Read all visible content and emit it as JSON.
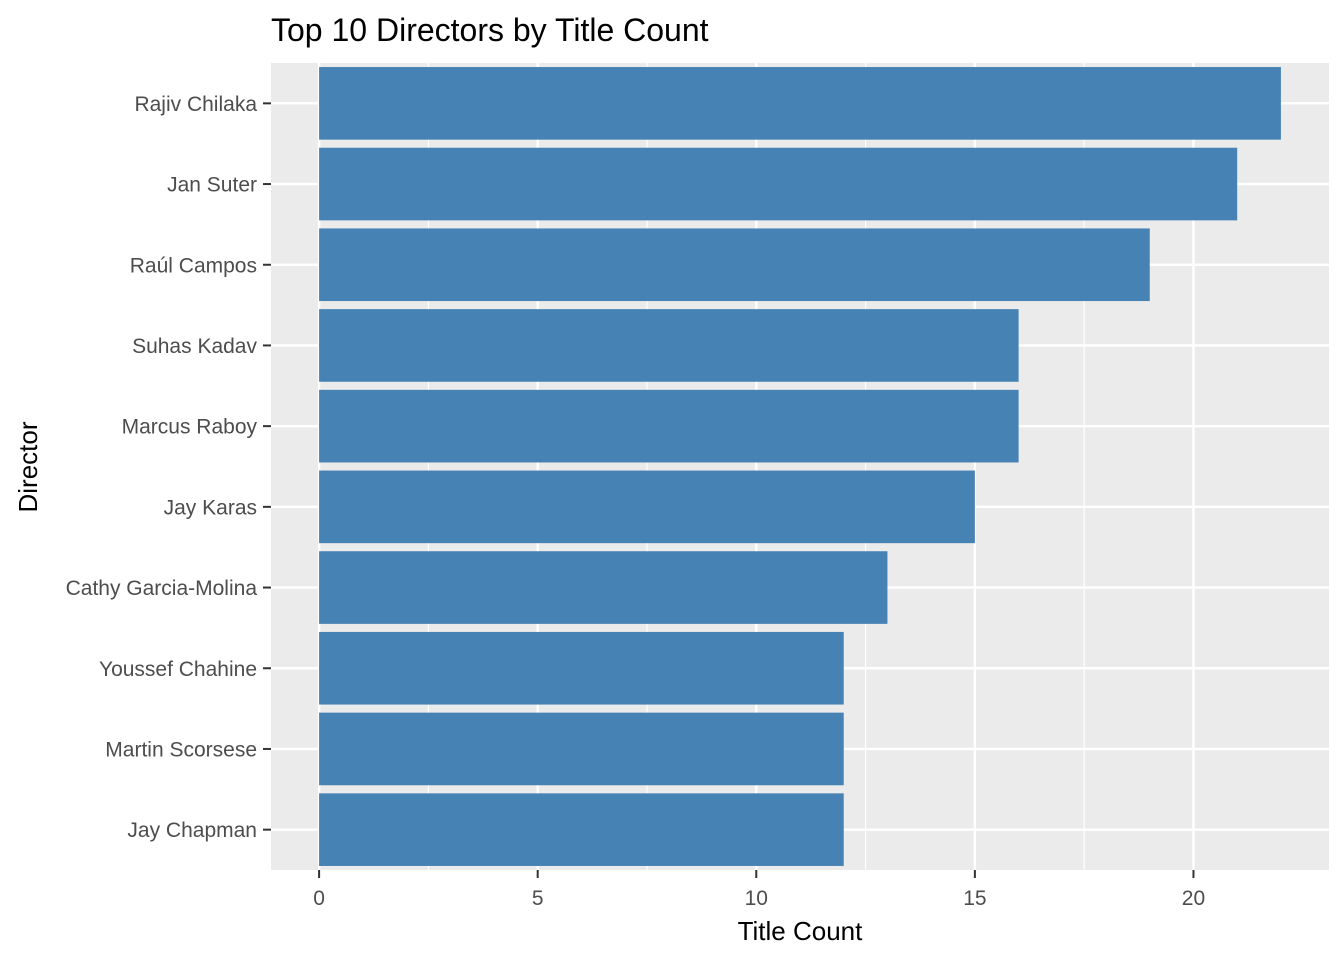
{
  "chart_data": {
    "type": "bar",
    "orientation": "horizontal",
    "title": "Top 10 Directors by Title Count",
    "xlabel": "Title Count",
    "ylabel": "Director",
    "categories": [
      "Rajiv Chilaka",
      "Jan Suter",
      "Raúl Campos",
      "Suhas Kadav",
      "Marcus Raboy",
      "Jay Karas",
      "Cathy Garcia-Molina",
      "Youssef Chahine",
      "Martin Scorsese",
      "Jay Chapman"
    ],
    "values": [
      22,
      21,
      19,
      16,
      16,
      15,
      13,
      12,
      12,
      12
    ],
    "xlim": [
      -1.1,
      23.1
    ],
    "xticks": [
      0,
      5,
      10,
      15,
      20
    ],
    "xtick_labels": [
      "0",
      "5",
      "10",
      "15",
      "20"
    ],
    "grid": true,
    "legend": "none",
    "colors": {
      "bar": "#4682b4",
      "panel_background": "#ebebeb",
      "grid_line": "#ffffff",
      "tick_label": "#4d4d4d",
      "tick_mark": "#333333"
    }
  }
}
